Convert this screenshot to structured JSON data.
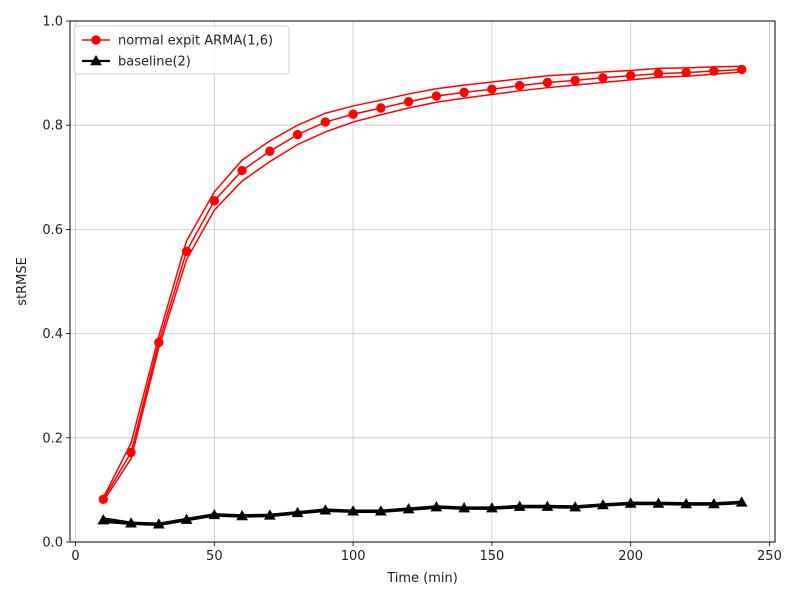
{
  "chart_data": {
    "type": "line",
    "xlabel": "Time (min)",
    "ylabel": "stRMSE",
    "xlim": [
      -2,
      252
    ],
    "ylim": [
      0.0,
      1.0
    ],
    "xticks": [
      0,
      50,
      100,
      150,
      200,
      250
    ],
    "yticks": [
      0.0,
      0.2,
      0.4,
      0.6,
      0.8,
      1.0
    ],
    "xtick_labels": [
      "0",
      "50",
      "100",
      "150",
      "200",
      "250"
    ],
    "ytick_labels": [
      "0.0",
      "0.2",
      "0.4",
      "0.6",
      "0.8",
      "1.0"
    ],
    "grid": true,
    "legend_position": "top-left",
    "x": [
      10,
      20,
      30,
      40,
      50,
      60,
      70,
      80,
      90,
      100,
      110,
      120,
      130,
      140,
      150,
      160,
      170,
      180,
      190,
      200,
      210,
      220,
      230,
      240
    ],
    "series": [
      {
        "name": "normal expit ARMA(1,6)",
        "color": "#ff0000",
        "marker": "circle",
        "values": [
          0.082,
          0.172,
          0.383,
          0.558,
          0.655,
          0.713,
          0.75,
          0.782,
          0.806,
          0.821,
          0.833,
          0.845,
          0.856,
          0.863,
          0.869,
          0.876,
          0.882,
          0.886,
          0.891,
          0.895,
          0.899,
          0.901,
          0.904,
          0.907
        ],
        "band_upper": [
          0.085,
          0.19,
          0.395,
          0.578,
          0.672,
          0.733,
          0.77,
          0.8,
          0.823,
          0.837,
          0.848,
          0.86,
          0.87,
          0.877,
          0.883,
          0.889,
          0.895,
          0.898,
          0.902,
          0.905,
          0.909,
          0.91,
          0.912,
          0.913
        ],
        "band_lower": [
          0.078,
          0.16,
          0.373,
          0.542,
          0.637,
          0.693,
          0.73,
          0.763,
          0.787,
          0.806,
          0.82,
          0.833,
          0.844,
          0.852,
          0.859,
          0.866,
          0.872,
          0.877,
          0.882,
          0.887,
          0.892,
          0.894,
          0.898,
          0.902
        ]
      },
      {
        "name": "baseline(2)",
        "color": "#000000",
        "marker": "triangle",
        "values": [
          0.042,
          0.036,
          0.034,
          0.043,
          0.052,
          0.05,
          0.051,
          0.056,
          0.061,
          0.059,
          0.059,
          0.063,
          0.067,
          0.065,
          0.065,
          0.068,
          0.068,
          0.067,
          0.071,
          0.074,
          0.074,
          0.073,
          0.073,
          0.076
        ],
        "band_upper": [
          0.046,
          0.038,
          0.036,
          0.045,
          0.054,
          0.052,
          0.053,
          0.058,
          0.063,
          0.061,
          0.061,
          0.065,
          0.069,
          0.067,
          0.067,
          0.07,
          0.07,
          0.069,
          0.073,
          0.076,
          0.076,
          0.075,
          0.075,
          0.078
        ],
        "band_lower": [
          0.038,
          0.034,
          0.032,
          0.041,
          0.05,
          0.048,
          0.049,
          0.054,
          0.059,
          0.057,
          0.057,
          0.061,
          0.065,
          0.063,
          0.063,
          0.066,
          0.066,
          0.065,
          0.069,
          0.072,
          0.072,
          0.071,
          0.071,
          0.074
        ]
      }
    ]
  }
}
